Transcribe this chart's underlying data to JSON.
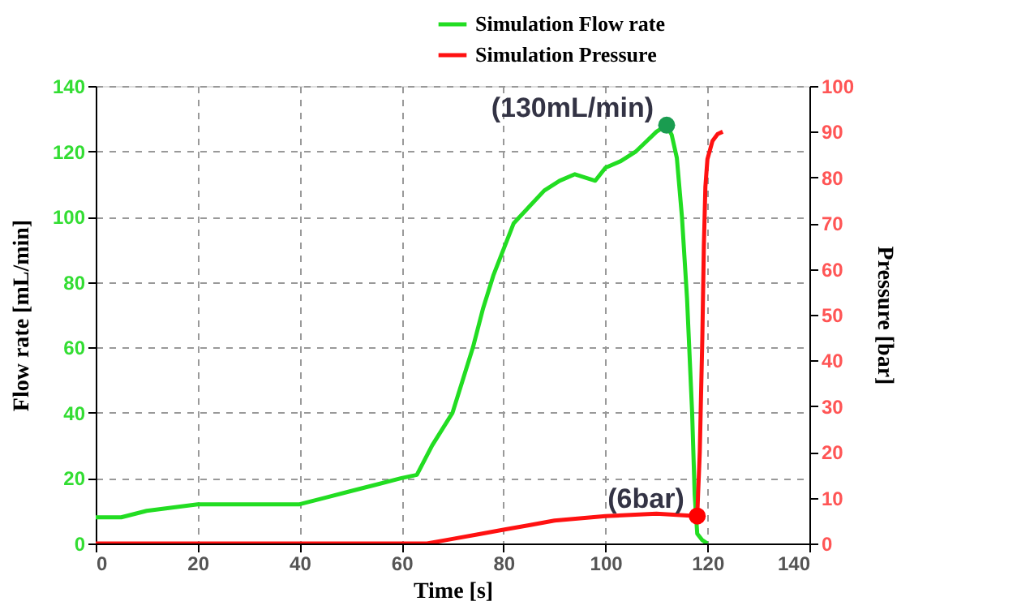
{
  "chart_data": {
    "type": "line",
    "xlabel": "Time [s]",
    "ylabel": "Flow rate [mL/min]",
    "y2label": "Pressure [bar]",
    "xlim": [
      0,
      140
    ],
    "xticks": [
      0,
      20,
      40,
      60,
      80,
      100,
      120,
      140
    ],
    "ylim": [
      0,
      140
    ],
    "yticks": [
      0,
      20,
      40,
      60,
      80,
      100,
      120,
      140
    ],
    "y2lim": [
      0,
      100
    ],
    "y2ticks": [
      0,
      10,
      20,
      30,
      40,
      50,
      60,
      70,
      80,
      90,
      100
    ],
    "grid": true,
    "legend": "top right",
    "line_style": "solid",
    "series": [
      {
        "name": "Simulation Flow rate",
        "color": "#22dd22",
        "x": [
          0,
          5,
          10,
          15,
          20,
          25,
          30,
          35,
          40,
          45,
          50,
          55,
          60,
          63,
          66,
          70,
          72,
          74,
          76,
          78,
          80,
          82,
          85,
          88,
          91,
          94,
          96,
          98,
          100,
          103,
          106,
          108,
          110,
          112,
          113,
          114,
          115,
          116,
          117,
          117.5,
          118,
          119,
          120
        ],
        "values": [
          8,
          8,
          10,
          11,
          12,
          12,
          12,
          12,
          12,
          14,
          16,
          18,
          20,
          21,
          30,
          40,
          50,
          60,
          72,
          82,
          90,
          98,
          103,
          108,
          111,
          113,
          112,
          111,
          115,
          117,
          120,
          123,
          126,
          128,
          125,
          118,
          100,
          75,
          40,
          15,
          3,
          1,
          0
        ]
      },
      {
        "name": "Simulation Pressure",
        "color": "#ff1111",
        "axis": "y2",
        "x": [
          0,
          20,
          40,
          60,
          65,
          70,
          75,
          80,
          85,
          90,
          100,
          110,
          118,
          118.5,
          119,
          119.3,
          119.6,
          120,
          121,
          122,
          123
        ],
        "values": [
          0,
          0,
          0,
          0,
          0,
          1,
          2,
          3,
          4,
          5,
          6,
          6.5,
          6,
          20,
          45,
          65,
          78,
          84,
          88,
          89.5,
          90
        ]
      },
      {
        "type": "scatter",
        "color": "#1a9c50",
        "x": [
          112
        ],
        "values": [
          128
        ],
        "marker": "circle"
      },
      {
        "type": "scatter",
        "color": "#ff0000",
        "axis": "y2",
        "x": [
          118
        ],
        "values": [
          6
        ],
        "marker": "circle"
      }
    ],
    "annotations": [
      {
        "text": "(130mL/min)",
        "x": 112,
        "y": 128
      },
      {
        "text": "(6bar)",
        "x": 118,
        "y": 6
      }
    ]
  }
}
